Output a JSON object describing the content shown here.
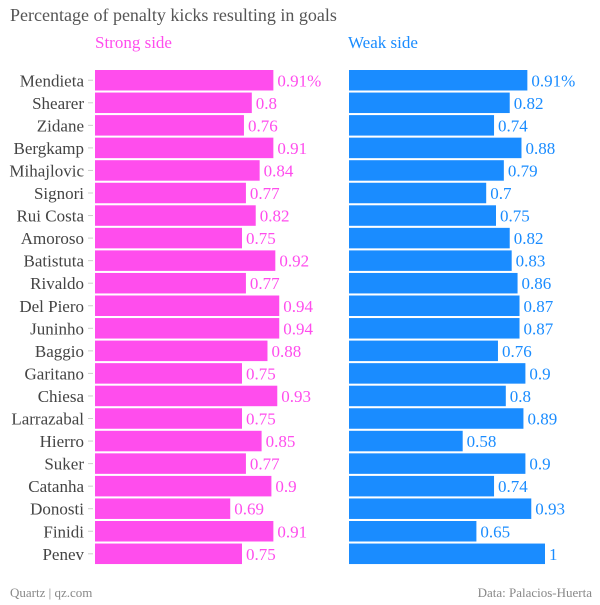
{
  "chart_data": {
    "type": "bar",
    "title": "Percentage of penalty kicks resulting in goals",
    "categories": [
      "Mendieta",
      "Shearer",
      "Zidane",
      "Bergkamp",
      "Mihajlovic",
      "Signori",
      "Rui Costa",
      "Amoroso",
      "Batistuta",
      "Rivaldo",
      "Del Piero",
      "Juninho",
      "Baggio",
      "Garitano",
      "Chiesa",
      "Larrazabal",
      "Hierro",
      "Suker",
      "Catanha",
      "Donosti",
      "Finidi",
      "Penev"
    ],
    "series": [
      {
        "name": "Strong side",
        "color": "#ff4ded",
        "values": [
          0.91,
          0.8,
          0.76,
          0.91,
          0.84,
          0.77,
          0.82,
          0.75,
          0.92,
          0.77,
          0.94,
          0.94,
          0.88,
          0.75,
          0.93,
          0.75,
          0.85,
          0.77,
          0.9,
          0.69,
          0.91,
          0.75
        ],
        "labels": [
          "0.91%",
          "0.8",
          "0.76",
          "0.91",
          "0.84",
          "0.77",
          "0.82",
          "0.75",
          "0.92",
          "0.77",
          "0.94",
          "0.94",
          "0.88",
          "0.75",
          "0.93",
          "0.75",
          "0.85",
          "0.77",
          "0.9",
          "0.69",
          "0.91",
          "0.75"
        ]
      },
      {
        "name": "Weak side",
        "color": "#1a8cff",
        "values": [
          0.91,
          0.82,
          0.74,
          0.88,
          0.79,
          0.7,
          0.75,
          0.82,
          0.83,
          0.86,
          0.87,
          0.87,
          0.76,
          0.9,
          0.8,
          0.89,
          0.58,
          0.9,
          0.74,
          0.93,
          0.65,
          1
        ],
        "labels": [
          "0.91%",
          "0.82",
          "0.74",
          "0.88",
          "0.79",
          "0.7",
          "0.75",
          "0.82",
          "0.83",
          "0.86",
          "0.87",
          "0.87",
          "0.76",
          "0.9",
          "0.8",
          "0.89",
          "0.58",
          "0.9",
          "0.74",
          "0.93",
          "0.65",
          "1"
        ]
      }
    ],
    "xlim": [
      0,
      1
    ],
    "grid": false,
    "legend": "top"
  },
  "footer": {
    "source_left": "Quartz | qz.com",
    "source_right": "Data: Palacios-Huerta"
  }
}
